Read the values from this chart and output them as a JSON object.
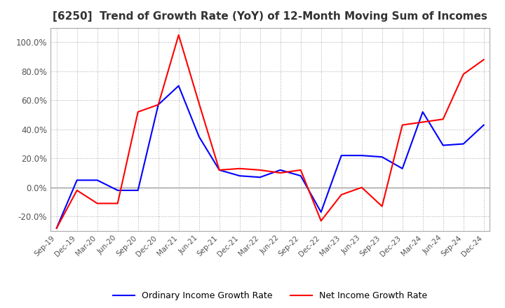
{
  "title": "[6250]  Trend of Growth Rate (YoY) of 12-Month Moving Sum of Incomes",
  "title_fontsize": 11,
  "x_labels": [
    "Sep-19",
    "Dec-19",
    "Mar-20",
    "Jun-20",
    "Sep-20",
    "Dec-20",
    "Mar-21",
    "Jun-21",
    "Sep-21",
    "Dec-21",
    "Mar-22",
    "Jun-22",
    "Sep-22",
    "Dec-22",
    "Mar-23",
    "Jun-23",
    "Sep-23",
    "Dec-23",
    "Mar-24",
    "Jun-24",
    "Sep-24",
    "Dec-24"
  ],
  "ordinary_income_growth": [
    -28,
    5,
    5,
    -2,
    -2,
    57,
    70,
    35,
    12,
    8,
    7,
    12,
    8,
    -17,
    22,
    22,
    21,
    13,
    52,
    29,
    30,
    43
  ],
  "net_income_growth": [
    -28,
    -2,
    -11,
    -11,
    52,
    57,
    105,
    58,
    12,
    13,
    12,
    10,
    12,
    -23,
    -5,
    0,
    -13,
    43,
    45,
    47,
    78,
    88
  ],
  "ylim": [
    -30,
    110
  ],
  "yticks": [
    -20,
    0,
    20,
    40,
    60,
    80,
    100
  ],
  "ordinary_color": "#0000FF",
  "net_color": "#FF0000",
  "legend_ordinary": "Ordinary Income Growth Rate",
  "legend_net": "Net Income Growth Rate",
  "grid_color": "#aaaaaa",
  "background_color": "#ffffff",
  "plot_bg_color": "#ffffff"
}
